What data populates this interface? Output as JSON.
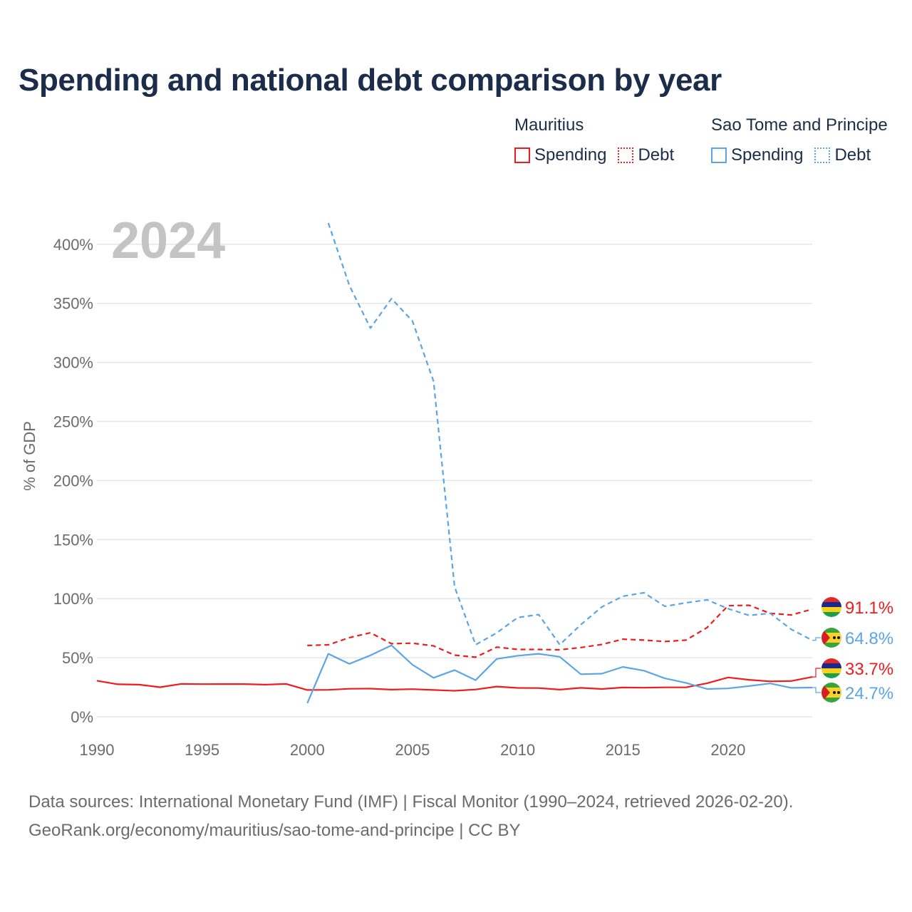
{
  "title": "Spending and national debt comparison by year",
  "legend": {
    "groups": [
      {
        "name": "Mauritius",
        "items": [
          {
            "label": "Spending",
            "style": "solid",
            "color": "#ee1c1c"
          },
          {
            "label": "Debt",
            "style": "dotted",
            "color": "#ee1c1c"
          }
        ]
      },
      {
        "name": "Sao Tome and Principe",
        "items": [
          {
            "label": "Spending",
            "style": "solid",
            "color": "#5aa5e6"
          },
          {
            "label": "Debt",
            "style": "dotted",
            "color": "#5aa5e6"
          }
        ]
      }
    ]
  },
  "source": {
    "line1": "Data sources: International Monetary Fund (IMF) | Fiscal Monitor (1990–2024, retrieved 2026-02-20).",
    "line2": "GeoRank.org/economy/mauritius/sao-tome-and-principe | CC BY"
  },
  "chart_data": {
    "type": "line",
    "title": "Spending and national debt comparison by year",
    "watermark_year": "2024",
    "ylabel": "% of GDP",
    "xlabel": "",
    "xlim": [
      1990,
      2024
    ],
    "ylim": [
      0,
      420
    ],
    "xticks": [
      1990,
      1995,
      2000,
      2005,
      2010,
      2015,
      2020
    ],
    "yticks": [
      0,
      50,
      100,
      150,
      200,
      250,
      300,
      350,
      400
    ],
    "ytick_suffix": "%",
    "grid": true,
    "series": [
      {
        "name": "Mauritius Spending",
        "color": "#ee1c1c",
        "dash": "solid",
        "end_label": "33.7%",
        "points": [
          [
            1990,
            30.5
          ],
          [
            1991,
            27.5
          ],
          [
            1992,
            27.2
          ],
          [
            1993,
            25
          ],
          [
            1994,
            27.8
          ],
          [
            1995,
            27.6
          ],
          [
            1996,
            27.7
          ],
          [
            1997,
            27.7
          ],
          [
            1998,
            27.2
          ],
          [
            1999,
            27.8
          ],
          [
            2000,
            22.7
          ],
          [
            2001,
            22.8
          ],
          [
            2002,
            23.7
          ],
          [
            2003,
            23.8
          ],
          [
            2004,
            23.0
          ],
          [
            2005,
            23.4
          ],
          [
            2006,
            22.7
          ],
          [
            2007,
            22.0
          ],
          [
            2008,
            23.1
          ],
          [
            2009,
            25.6
          ],
          [
            2010,
            24.4
          ],
          [
            2011,
            24.3
          ],
          [
            2012,
            23.0
          ],
          [
            2013,
            24.5
          ],
          [
            2014,
            23.5
          ],
          [
            2015,
            24.8
          ],
          [
            2016,
            24.6
          ],
          [
            2017,
            24.9
          ],
          [
            2018,
            24.9
          ],
          [
            2019,
            28.4
          ],
          [
            2020,
            33.3
          ],
          [
            2021,
            31.3
          ],
          [
            2022,
            30.0
          ],
          [
            2023,
            30.3
          ],
          [
            2024,
            33.7
          ]
        ]
      },
      {
        "name": "Mauritius Debt",
        "color": "#ee1c1c",
        "dash": "dashed",
        "end_label": "91.1%",
        "points": [
          [
            2000,
            60.4
          ],
          [
            2001,
            60.9
          ],
          [
            2002,
            67.0
          ],
          [
            2003,
            71.1
          ],
          [
            2004,
            61.9
          ],
          [
            2005,
            62.3
          ],
          [
            2006,
            60.0
          ],
          [
            2007,
            52.2
          ],
          [
            2008,
            50.4
          ],
          [
            2009,
            59.0
          ],
          [
            2010,
            57.0
          ],
          [
            2011,
            57.0
          ],
          [
            2012,
            56.7
          ],
          [
            2013,
            58.6
          ],
          [
            2014,
            61.2
          ],
          [
            2015,
            65.7
          ],
          [
            2016,
            64.9
          ],
          [
            2017,
            63.7
          ],
          [
            2018,
            64.9
          ],
          [
            2019,
            75.5
          ],
          [
            2020,
            94.0
          ],
          [
            2021,
            94.4
          ],
          [
            2022,
            87.6
          ],
          [
            2023,
            86.2
          ],
          [
            2024,
            91.1
          ]
        ]
      },
      {
        "name": "Sao Tome and Principe Spending",
        "color": "#5aa5e6",
        "dash": "solid",
        "end_label": "24.7%",
        "points": [
          [
            2000,
            11.5
          ],
          [
            2001,
            53.3
          ],
          [
            2002,
            44.8
          ],
          [
            2003,
            52.0
          ],
          [
            2004,
            60.5
          ],
          [
            2005,
            44.0
          ],
          [
            2006,
            33.0
          ],
          [
            2007,
            39.5
          ],
          [
            2008,
            31.0
          ],
          [
            2009,
            49.0
          ],
          [
            2010,
            51.7
          ],
          [
            2011,
            53.3
          ],
          [
            2012,
            50.8
          ],
          [
            2013,
            36.0
          ],
          [
            2014,
            36.5
          ],
          [
            2015,
            42.2
          ],
          [
            2016,
            39.0
          ],
          [
            2017,
            32.5
          ],
          [
            2018,
            28.7
          ],
          [
            2019,
            23.5
          ],
          [
            2020,
            24.0
          ],
          [
            2021,
            26.0
          ],
          [
            2022,
            28.2
          ],
          [
            2023,
            24.5
          ],
          [
            2024,
            24.7
          ]
        ]
      },
      {
        "name": "Sao Tome and Principe Debt",
        "color": "#5aa5e6",
        "dash": "dashed",
        "end_label": "64.8%",
        "points": [
          [
            2001,
            418
          ],
          [
            2002,
            365
          ],
          [
            2003,
            329
          ],
          [
            2004,
            354
          ],
          [
            2005,
            335
          ],
          [
            2006,
            284
          ],
          [
            2007,
            110
          ],
          [
            2008,
            61.0
          ],
          [
            2009,
            71.0
          ],
          [
            2010,
            84.0
          ],
          [
            2011,
            86.5
          ],
          [
            2012,
            61.0
          ],
          [
            2013,
            78.0
          ],
          [
            2014,
            93.0
          ],
          [
            2015,
            102.0
          ],
          [
            2016,
            105.0
          ],
          [
            2017,
            93.5
          ],
          [
            2018,
            96.5
          ],
          [
            2019,
            99.0
          ],
          [
            2020,
            91.5
          ],
          [
            2021,
            85.8
          ],
          [
            2022,
            87.6
          ],
          [
            2023,
            74.0
          ],
          [
            2024,
            64.8
          ]
        ]
      }
    ]
  }
}
